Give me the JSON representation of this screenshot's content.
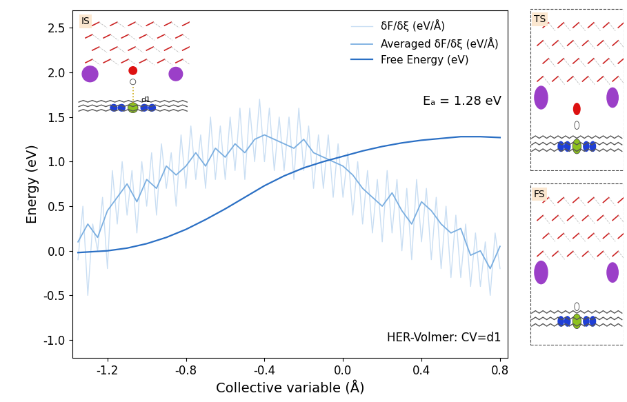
{
  "chart_data": {
    "type": "line",
    "x_label": "Collective variable (Å)",
    "y_label": "Energy (eV)",
    "xlim": [
      -1.38,
      0.84
    ],
    "ylim": [
      -1.2,
      2.7
    ],
    "xticks": [
      -1.2,
      -0.8,
      -0.4,
      0.0,
      0.4,
      0.8
    ],
    "yticks": [
      -1.0,
      -0.5,
      0.0,
      0.5,
      1.0,
      1.5,
      2.0,
      2.5
    ],
    "legend": "upper right",
    "annotations": [
      "Eₐ = 1.28 eV",
      "HER-Volmer: CV=d1"
    ],
    "insets": {
      "labels": [
        "IS",
        "TS",
        "FS"
      ],
      "bond_label": "d1"
    },
    "series": [
      {
        "name": "δF/δξ (eV/Å)",
        "color": "#c9def3",
        "x": [
          -1.35,
          -1.325,
          -1.3,
          -1.275,
          -1.25,
          -1.225,
          -1.2,
          -1.175,
          -1.15,
          -1.125,
          -1.1,
          -1.075,
          -1.05,
          -1.025,
          -1.0,
          -0.975,
          -0.95,
          -0.925,
          -0.9,
          -0.875,
          -0.85,
          -0.825,
          -0.8,
          -0.775,
          -0.75,
          -0.725,
          -0.7,
          -0.675,
          -0.65,
          -0.625,
          -0.6,
          -0.575,
          -0.55,
          -0.525,
          -0.5,
          -0.475,
          -0.45,
          -0.425,
          -0.4,
          -0.375,
          -0.35,
          -0.325,
          -0.3,
          -0.275,
          -0.25,
          -0.225,
          -0.2,
          -0.175,
          -0.15,
          -0.125,
          -0.1,
          -0.075,
          -0.05,
          -0.025,
          0.0,
          0.025,
          0.05,
          0.075,
          0.1,
          0.125,
          0.15,
          0.175,
          0.2,
          0.225,
          0.25,
          0.275,
          0.3,
          0.325,
          0.35,
          0.375,
          0.4,
          0.425,
          0.45,
          0.475,
          0.5,
          0.525,
          0.55,
          0.575,
          0.6,
          0.625,
          0.65,
          0.675,
          0.7,
          0.725,
          0.75,
          0.775,
          0.8
        ],
        "values": [
          -0.1,
          0.5,
          -0.5,
          0.3,
          0.0,
          0.6,
          -0.2,
          0.9,
          0.3,
          1.0,
          0.4,
          0.9,
          0.2,
          1.0,
          0.5,
          1.1,
          0.4,
          1.2,
          0.7,
          1.1,
          0.5,
          1.3,
          0.7,
          1.4,
          0.8,
          1.3,
          0.7,
          1.5,
          0.8,
          1.4,
          0.8,
          1.5,
          0.9,
          1.6,
          0.8,
          1.6,
          1.0,
          1.7,
          1.0,
          1.6,
          0.9,
          1.5,
          0.9,
          1.5,
          0.8,
          1.6,
          0.9,
          1.4,
          0.7,
          1.3,
          0.7,
          1.3,
          0.6,
          1.2,
          0.6,
          1.1,
          0.4,
          1.0,
          0.3,
          0.9,
          0.2,
          0.8,
          0.1,
          0.9,
          0.2,
          0.8,
          0.0,
          0.7,
          -0.1,
          0.8,
          0.1,
          0.7,
          -0.1,
          0.6,
          -0.2,
          0.5,
          -0.3,
          0.4,
          -0.3,
          0.3,
          -0.4,
          0.2,
          -0.4,
          0.1,
          -0.5,
          0.2,
          -0.2
        ]
      },
      {
        "name": "Averaged δF/δξ (eV/Å)",
        "color": "#7aaee0",
        "x": [
          -1.35,
          -1.3,
          -1.25,
          -1.2,
          -1.15,
          -1.1,
          -1.05,
          -1.0,
          -0.95,
          -0.9,
          -0.85,
          -0.8,
          -0.75,
          -0.7,
          -0.65,
          -0.6,
          -0.55,
          -0.5,
          -0.45,
          -0.4,
          -0.35,
          -0.3,
          -0.25,
          -0.2,
          -0.15,
          -0.1,
          -0.05,
          0.0,
          0.05,
          0.1,
          0.15,
          0.2,
          0.25,
          0.3,
          0.35,
          0.4,
          0.45,
          0.5,
          0.55,
          0.6,
          0.65,
          0.7,
          0.75,
          0.8
        ],
        "values": [
          0.1,
          0.3,
          0.15,
          0.45,
          0.6,
          0.75,
          0.55,
          0.8,
          0.7,
          0.95,
          0.85,
          0.95,
          1.1,
          0.95,
          1.15,
          1.05,
          1.2,
          1.1,
          1.25,
          1.3,
          1.25,
          1.2,
          1.15,
          1.25,
          1.1,
          1.05,
          1.0,
          0.95,
          0.85,
          0.7,
          0.6,
          0.5,
          0.65,
          0.45,
          0.3,
          0.55,
          0.45,
          0.3,
          0.2,
          0.25,
          -0.05,
          0.0,
          -0.2,
          0.05
        ]
      },
      {
        "name": "Free Energy (eV)",
        "color": "#2a6fc4",
        "x": [
          -1.35,
          -1.2,
          -1.1,
          -1.0,
          -0.9,
          -0.8,
          -0.7,
          -0.6,
          -0.5,
          -0.4,
          -0.3,
          -0.2,
          -0.1,
          0.0,
          0.1,
          0.2,
          0.3,
          0.4,
          0.5,
          0.6,
          0.65,
          0.7,
          0.8
        ],
        "values": [
          -0.02,
          0.0,
          0.03,
          0.08,
          0.15,
          0.24,
          0.35,
          0.47,
          0.6,
          0.73,
          0.84,
          0.93,
          1.0,
          1.06,
          1.12,
          1.17,
          1.21,
          1.24,
          1.26,
          1.28,
          1.28,
          1.28,
          1.27
        ]
      }
    ]
  }
}
